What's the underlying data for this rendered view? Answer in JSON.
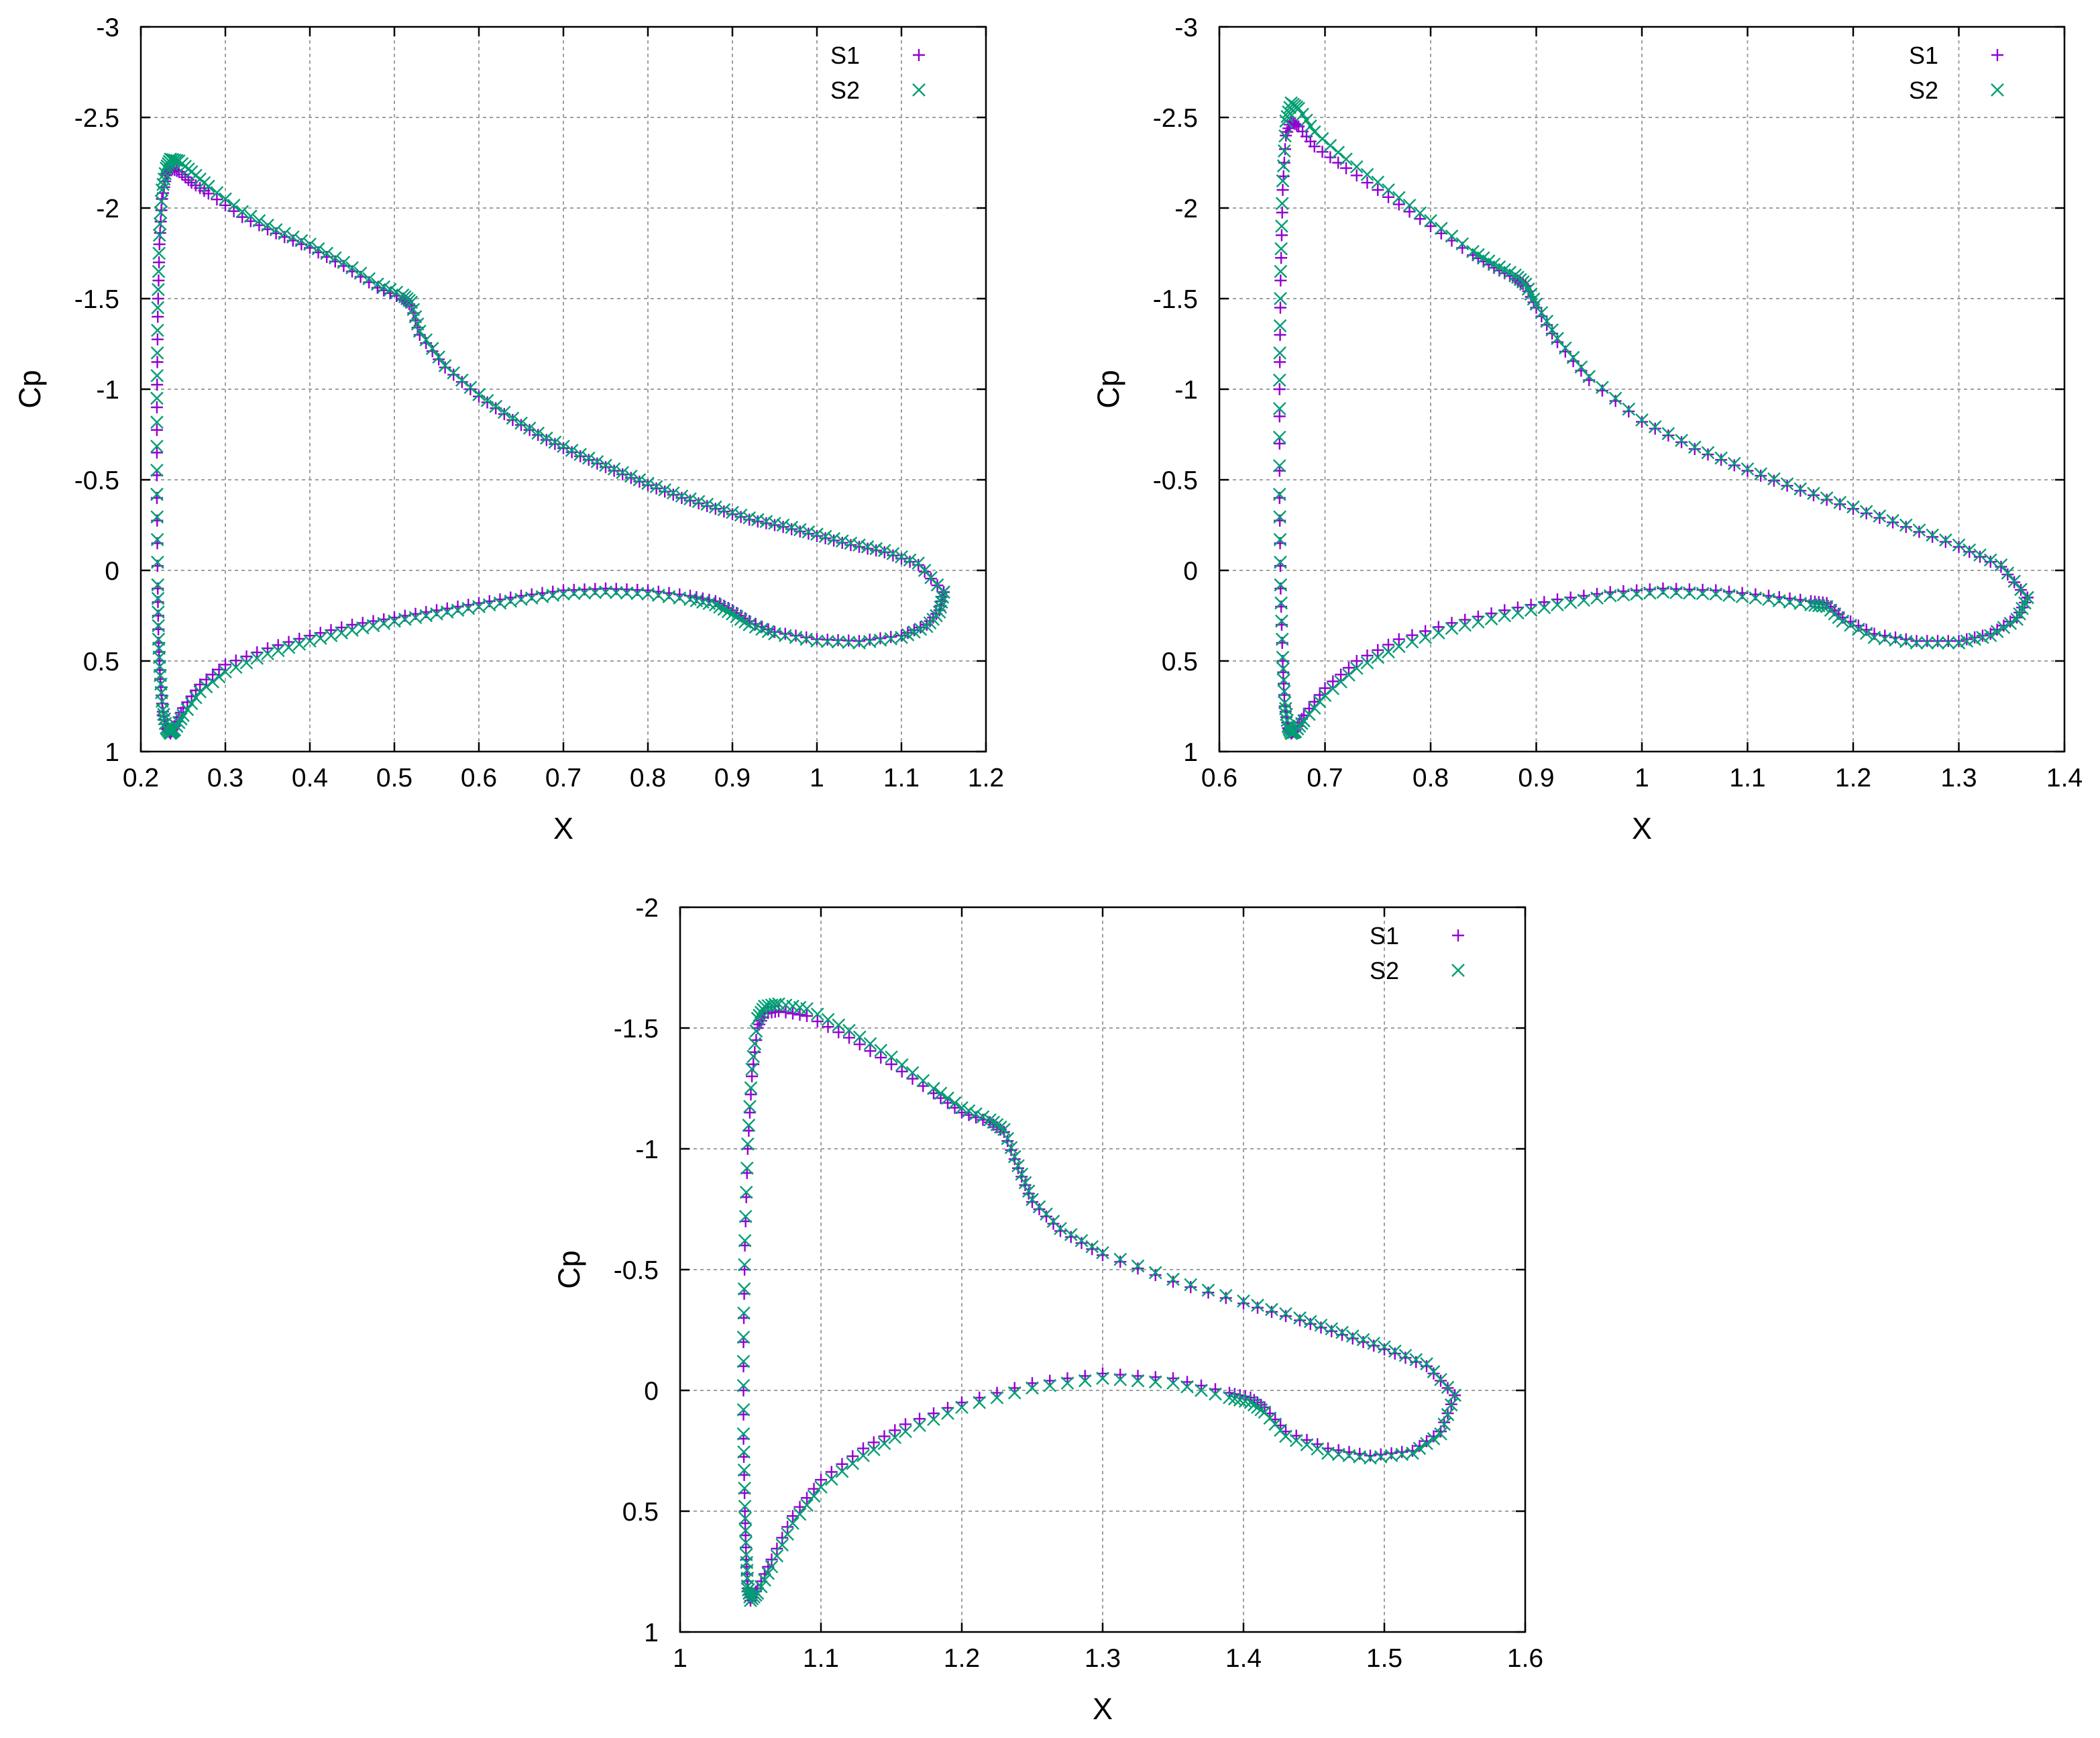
{
  "chart_data": [
    {
      "type": "scatter",
      "title": "",
      "xlabel": "X",
      "ylabel": "Cp",
      "xlim": [
        0.2,
        1.2
      ],
      "ylim": [
        1,
        -3
      ],
      "y_inverted": true,
      "grid": true,
      "legend_position": "top-right",
      "xticks": [
        "0.2",
        "0.3",
        "0.4",
        "0.5",
        "0.6",
        "0.7",
        "0.8",
        "0.9",
        "1",
        "1.1",
        "1.2"
      ],
      "yticks": [
        "-3",
        "-2.5",
        "-2",
        "-1.5",
        "-1",
        "-0.5",
        "0",
        "0.5",
        "1"
      ],
      "series": [
        {
          "name": "S1",
          "marker": "+",
          "color": "#9400d3",
          "x": [
            1.15,
            1.12,
            1.08,
            1.04,
            1.0,
            0.96,
            0.92,
            0.88,
            0.84,
            0.8,
            0.76,
            0.72,
            0.68,
            0.64,
            0.6,
            0.56,
            0.53,
            0.52,
            0.51,
            0.48,
            0.44,
            0.4,
            0.36,
            0.32,
            0.28,
            0.26,
            0.245,
            0.235,
            0.23,
            0.225,
            0.222,
            0.22,
            0.219,
            0.219,
            0.22,
            0.221,
            0.223,
            0.226,
            0.23,
            0.235,
            0.24,
            0.25,
            0.27,
            0.3,
            0.35,
            0.4,
            0.45,
            0.5,
            0.55,
            0.6,
            0.65,
            0.7,
            0.75,
            0.8,
            0.85,
            0.88,
            0.9,
            0.92,
            0.95,
            1.0,
            1.05,
            1.1,
            1.13,
            1.145,
            1.15
          ],
          "y": [
            0.12,
            -0.03,
            -0.1,
            -0.14,
            -0.19,
            -0.24,
            -0.28,
            -0.34,
            -0.4,
            -0.47,
            -0.55,
            -0.63,
            -0.72,
            -0.83,
            -0.96,
            -1.12,
            -1.3,
            -1.46,
            -1.5,
            -1.56,
            -1.68,
            -1.78,
            -1.86,
            -1.95,
            -2.08,
            -2.14,
            -2.2,
            -2.22,
            -2.18,
            -2.05,
            -1.8,
            -1.4,
            -0.9,
            -0.4,
            0.1,
            0.4,
            0.6,
            0.78,
            0.87,
            0.9,
            0.86,
            0.76,
            0.63,
            0.52,
            0.43,
            0.36,
            0.3,
            0.26,
            0.22,
            0.18,
            0.14,
            0.11,
            0.1,
            0.11,
            0.14,
            0.17,
            0.22,
            0.28,
            0.34,
            0.38,
            0.39,
            0.36,
            0.3,
            0.22,
            0.12
          ]
        },
        {
          "name": "S2",
          "marker": "x",
          "color": "#009e73",
          "x": [
            1.15,
            1.12,
            1.08,
            1.04,
            1.0,
            0.96,
            0.92,
            0.88,
            0.84,
            0.8,
            0.76,
            0.72,
            0.68,
            0.64,
            0.6,
            0.56,
            0.53,
            0.52,
            0.51,
            0.48,
            0.44,
            0.4,
            0.36,
            0.32,
            0.28,
            0.26,
            0.245,
            0.235,
            0.23,
            0.225,
            0.222,
            0.22,
            0.219,
            0.219,
            0.22,
            0.221,
            0.223,
            0.226,
            0.23,
            0.235,
            0.24,
            0.25,
            0.27,
            0.3,
            0.35,
            0.4,
            0.45,
            0.5,
            0.55,
            0.6,
            0.65,
            0.7,
            0.75,
            0.8,
            0.85,
            0.88,
            0.9,
            0.92,
            0.95,
            1.0,
            1.05,
            1.1,
            1.13,
            1.145,
            1.15
          ],
          "y": [
            0.12,
            -0.04,
            -0.11,
            -0.15,
            -0.2,
            -0.25,
            -0.29,
            -0.35,
            -0.41,
            -0.48,
            -0.56,
            -0.64,
            -0.73,
            -0.84,
            -0.97,
            -1.13,
            -1.32,
            -1.48,
            -1.52,
            -1.58,
            -1.7,
            -1.8,
            -1.88,
            -1.98,
            -2.12,
            -2.2,
            -2.26,
            -2.27,
            -2.22,
            -2.1,
            -1.85,
            -1.45,
            -0.95,
            -0.42,
            0.08,
            0.38,
            0.58,
            0.77,
            0.87,
            0.9,
            0.88,
            0.8,
            0.67,
            0.56,
            0.46,
            0.39,
            0.33,
            0.28,
            0.24,
            0.2,
            0.16,
            0.13,
            0.12,
            0.13,
            0.16,
            0.19,
            0.24,
            0.3,
            0.35,
            0.39,
            0.4,
            0.37,
            0.31,
            0.23,
            0.12
          ]
        }
      ]
    },
    {
      "type": "scatter",
      "title": "",
      "xlabel": "X",
      "ylabel": "Cp",
      "xlim": [
        0.6,
        1.4
      ],
      "ylim": [
        1,
        -3
      ],
      "y_inverted": true,
      "grid": true,
      "legend_position": "top-right",
      "xticks": [
        "0.6",
        "0.7",
        "0.8",
        "0.9",
        "1",
        "1.1",
        "1.2",
        "1.3",
        "1.4"
      ],
      "yticks": [
        "-3",
        "-2.5",
        "-2",
        "-1.5",
        "-1",
        "-0.5",
        "0",
        "0.5",
        "1"
      ],
      "series": [
        {
          "name": "S1",
          "marker": "+",
          "color": "#9400d3",
          "x": [
            1.365,
            1.34,
            1.3,
            1.25,
            1.2,
            1.15,
            1.1,
            1.05,
            1.0,
            0.95,
            0.92,
            0.9,
            0.89,
            0.88,
            0.86,
            0.84,
            0.8,
            0.76,
            0.72,
            0.69,
            0.675,
            0.668,
            0.663,
            0.66,
            0.658,
            0.657,
            0.657,
            0.658,
            0.66,
            0.662,
            0.665,
            0.668,
            0.672,
            0.68,
            0.7,
            0.73,
            0.77,
            0.82,
            0.87,
            0.92,
            0.97,
            1.02,
            1.07,
            1.12,
            1.16,
            1.175,
            1.19,
            1.22,
            1.26,
            1.3,
            1.33,
            1.355,
            1.365
          ],
          "y": [
            0.15,
            -0.02,
            -0.13,
            -0.24,
            -0.34,
            -0.44,
            -0.55,
            -0.67,
            -0.82,
            -1.05,
            -1.26,
            -1.45,
            -1.57,
            -1.61,
            -1.67,
            -1.74,
            -1.9,
            -2.06,
            -2.22,
            -2.34,
            -2.45,
            -2.48,
            -2.4,
            -2.1,
            -1.6,
            -1.0,
            -0.4,
            0.1,
            0.5,
            0.75,
            0.87,
            0.9,
            0.88,
            0.8,
            0.65,
            0.5,
            0.38,
            0.29,
            0.22,
            0.16,
            0.12,
            0.1,
            0.11,
            0.14,
            0.17,
            0.18,
            0.26,
            0.35,
            0.39,
            0.39,
            0.35,
            0.26,
            0.15
          ]
        },
        {
          "name": "S2",
          "marker": "x",
          "color": "#009e73",
          "x": [
            1.365,
            1.34,
            1.3,
            1.25,
            1.2,
            1.15,
            1.1,
            1.05,
            1.0,
            0.95,
            0.92,
            0.9,
            0.89,
            0.88,
            0.86,
            0.84,
            0.8,
            0.76,
            0.72,
            0.69,
            0.675,
            0.668,
            0.663,
            0.66,
            0.658,
            0.657,
            0.657,
            0.658,
            0.66,
            0.662,
            0.665,
            0.668,
            0.672,
            0.68,
            0.7,
            0.73,
            0.77,
            0.82,
            0.87,
            0.92,
            0.97,
            1.02,
            1.07,
            1.12,
            1.16,
            1.175,
            1.19,
            1.22,
            1.26,
            1.3,
            1.33,
            1.355,
            1.365
          ],
          "y": [
            0.15,
            -0.03,
            -0.14,
            -0.25,
            -0.35,
            -0.45,
            -0.56,
            -0.68,
            -0.83,
            -1.07,
            -1.28,
            -1.47,
            -1.58,
            -1.63,
            -1.69,
            -1.76,
            -1.93,
            -2.1,
            -2.27,
            -2.42,
            -2.55,
            -2.58,
            -2.48,
            -2.15,
            -1.65,
            -1.05,
            -0.42,
            0.08,
            0.48,
            0.73,
            0.86,
            0.9,
            0.89,
            0.83,
            0.69,
            0.54,
            0.42,
            0.32,
            0.25,
            0.19,
            0.14,
            0.12,
            0.13,
            0.16,
            0.19,
            0.2,
            0.28,
            0.37,
            0.4,
            0.4,
            0.36,
            0.27,
            0.15
          ]
        }
      ]
    },
    {
      "type": "scatter",
      "title": "",
      "xlabel": "X",
      "ylabel": "Cp",
      "xlim": [
        1,
        1.6
      ],
      "ylim": [
        1,
        -2
      ],
      "y_inverted": true,
      "grid": true,
      "legend_position": "top-right",
      "xticks": [
        "1",
        "1.1",
        "1.2",
        "1.3",
        "1.4",
        "1.5",
        "1.6"
      ],
      "yticks": [
        "-2",
        "-1.5",
        "-1",
        "-0.5",
        "0",
        "0.5",
        "1"
      ],
      "series": [
        {
          "name": "S1",
          "marker": "+",
          "color": "#9400d3",
          "x": [
            1.55,
            1.53,
            1.5,
            1.47,
            1.44,
            1.4,
            1.35,
            1.3,
            1.27,
            1.25,
            1.24,
            1.23,
            1.22,
            1.2,
            1.18,
            1.15,
            1.12,
            1.09,
            1.07,
            1.06,
            1.055,
            1.051,
            1.048,
            1.046,
            1.045,
            1.045,
            1.046,
            1.047,
            1.048,
            1.05,
            1.055,
            1.065,
            1.08,
            1.1,
            1.13,
            1.16,
            1.2,
            1.25,
            1.3,
            1.35,
            1.39,
            1.405,
            1.415,
            1.43,
            1.46,
            1.49,
            1.52,
            1.54,
            1.55
          ],
          "y": [
            0.02,
            -0.1,
            -0.17,
            -0.23,
            -0.29,
            -0.36,
            -0.45,
            -0.56,
            -0.66,
            -0.78,
            -0.92,
            -1.07,
            -1.11,
            -1.15,
            -1.23,
            -1.35,
            -1.46,
            -1.55,
            -1.57,
            -1.56,
            -1.5,
            -1.3,
            -1.0,
            -0.6,
            -0.2,
            0.2,
            0.5,
            0.7,
            0.82,
            0.87,
            0.82,
            0.7,
            0.52,
            0.37,
            0.24,
            0.14,
            0.05,
            -0.03,
            -0.07,
            -0.05,
            0.01,
            0.03,
            0.07,
            0.17,
            0.24,
            0.27,
            0.25,
            0.17,
            0.02
          ]
        },
        {
          "name": "S2",
          "marker": "x",
          "color": "#009e73",
          "x": [
            1.55,
            1.53,
            1.5,
            1.47,
            1.44,
            1.4,
            1.35,
            1.3,
            1.27,
            1.25,
            1.24,
            1.23,
            1.22,
            1.2,
            1.18,
            1.15,
            1.12,
            1.09,
            1.07,
            1.06,
            1.055,
            1.051,
            1.048,
            1.046,
            1.045,
            1.045,
            1.046,
            1.047,
            1.048,
            1.05,
            1.055,
            1.065,
            1.08,
            1.1,
            1.13,
            1.16,
            1.2,
            1.25,
            1.3,
            1.35,
            1.39,
            1.405,
            1.415,
            1.43,
            1.46,
            1.49,
            1.52,
            1.54,
            1.55
          ],
          "y": [
            0.02,
            -0.11,
            -0.18,
            -0.24,
            -0.3,
            -0.37,
            -0.46,
            -0.57,
            -0.67,
            -0.79,
            -0.93,
            -1.08,
            -1.12,
            -1.17,
            -1.25,
            -1.38,
            -1.49,
            -1.58,
            -1.6,
            -1.59,
            -1.54,
            -1.33,
            -1.02,
            -0.62,
            -0.22,
            0.18,
            0.48,
            0.68,
            0.81,
            0.87,
            0.84,
            0.73,
            0.55,
            0.4,
            0.27,
            0.17,
            0.07,
            -0.01,
            -0.05,
            -0.03,
            0.03,
            0.05,
            0.09,
            0.19,
            0.26,
            0.28,
            0.26,
            0.18,
            0.02
          ]
        }
      ]
    }
  ]
}
